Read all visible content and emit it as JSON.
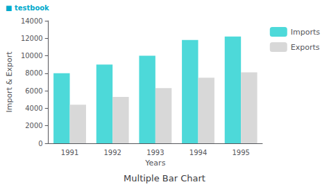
{
  "chart_data": {
    "type": "bar",
    "title": "Multiple Bar Chart",
    "xlabel": "Years",
    "ylabel": "Import & Export",
    "annotations": [
      "■ testbook"
    ],
    "categories": [
      "1991",
      "1992",
      "1993",
      "1994",
      "1995"
    ],
    "series": [
      {
        "name": "Imports",
        "color": "#4DD9D9",
        "values": [
          8000,
          9000,
          10000,
          11800,
          12200
        ]
      },
      {
        "name": "Exports",
        "color": "#D8D8D8",
        "values": [
          4400,
          5300,
          6300,
          7500,
          8100
        ]
      }
    ],
    "ylim": [
      0,
      14000
    ],
    "yticks": [
      0,
      2000,
      4000,
      6000,
      8000,
      10000,
      12000,
      14000
    ],
    "grid": false,
    "legend": "right"
  }
}
